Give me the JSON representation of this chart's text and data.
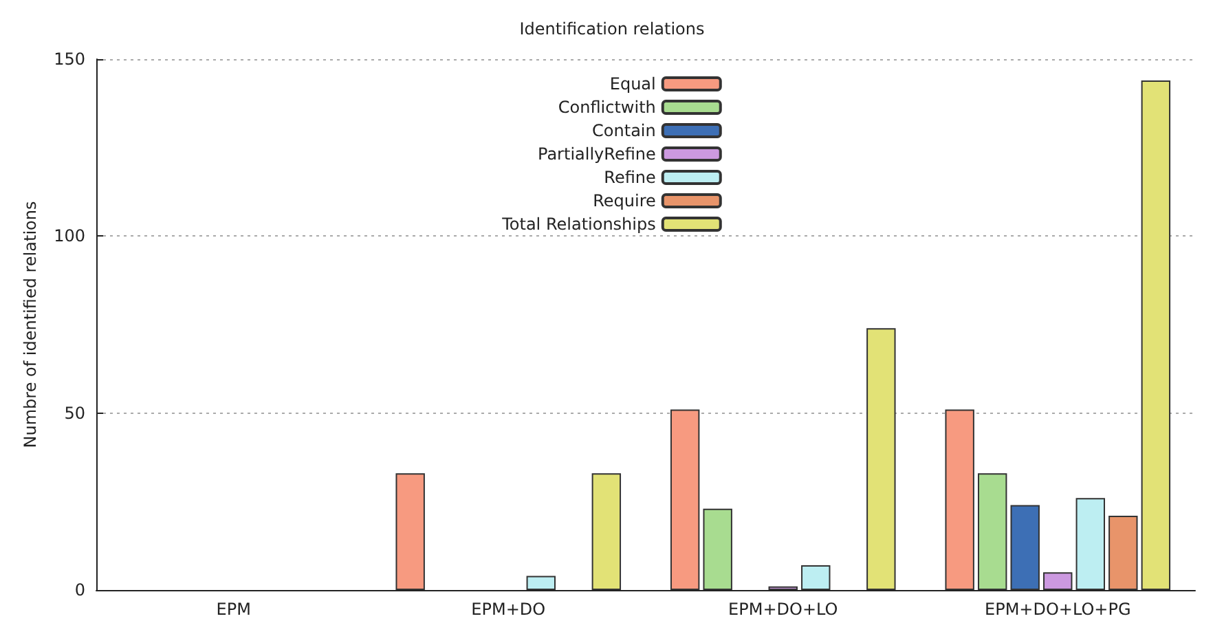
{
  "chart_data": {
    "type": "bar",
    "title": "Identification relations",
    "ylabel": "Numbre of identified relations",
    "categories": [
      "EPM",
      "EPM+DO",
      "EPM+DO+LO",
      "EPM+DO+LO+PG"
    ],
    "series": [
      {
        "name": "Equal",
        "color": "#f79a80",
        "values": [
          null,
          33,
          51,
          51
        ]
      },
      {
        "name": "Conflictwith",
        "color": "#a8dc90",
        "values": [
          null,
          null,
          23,
          33
        ]
      },
      {
        "name": "Contain",
        "color": "#3d6fb5",
        "values": [
          null,
          null,
          null,
          24
        ]
      },
      {
        "name": "PartiallyRefine",
        "color": "#cc99e0",
        "values": [
          null,
          null,
          1,
          5
        ]
      },
      {
        "name": "Refine",
        "color": "#bdeef2",
        "values": [
          null,
          4,
          7,
          26
        ]
      },
      {
        "name": "Require",
        "color": "#e8946a",
        "values": [
          null,
          null,
          null,
          21
        ]
      },
      {
        "name": "Total Relationships",
        "color": "#e2e276",
        "values": [
          null,
          33,
          74,
          144
        ]
      }
    ],
    "ylim": [
      0,
      150
    ],
    "yticks": [
      0,
      50,
      100,
      150
    ],
    "grid": "y",
    "legend": "top"
  }
}
